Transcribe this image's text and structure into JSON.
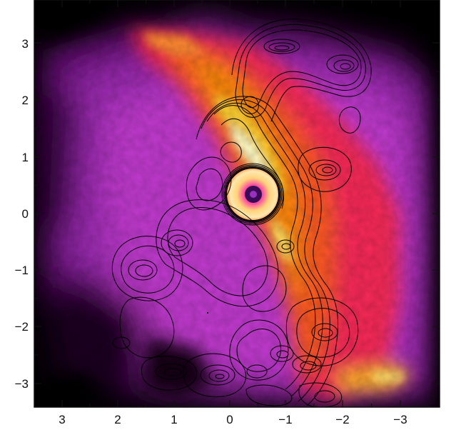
{
  "figure": {
    "x_ticks": [
      "3",
      "2",
      "1",
      "0",
      "−1",
      "−2",
      "−3"
    ],
    "y_ticks": [
      "3",
      "2",
      "1",
      "0",
      "−1",
      "−2",
      "−3"
    ],
    "axis_values": {
      "x": [
        3,
        2,
        1,
        0,
        -1,
        -2,
        -3
      ],
      "y": [
        3,
        2,
        1,
        0,
        -1,
        -2,
        -3
      ]
    },
    "x_direction": "decreasing to the right",
    "image_colormap": [
      "#000000",
      "#6a0a7a",
      "#c23ad0",
      "#ff2a4a",
      "#ff8a10",
      "#ffe030",
      "#ffffe0"
    ],
    "contour_color": "#000000",
    "frame_color": "#111111",
    "features": [
      "diffuse magenta emission nebula",
      "bright yellow-red ridge",
      "black contour lines",
      "bright ring source near center"
    ]
  }
}
